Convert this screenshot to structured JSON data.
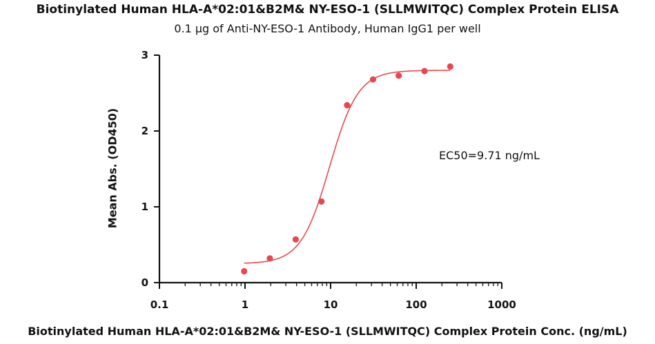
{
  "chart_data": {
    "type": "scatter",
    "title": "Biotinylated Human HLA-A*02:01&B2M& NY-ESO-1 (SLLMWITQC) Complex Protein ELISA",
    "subtitle": "0.1 μg of Anti-NY-ESO-1 Antibody, Human IgG1 per well",
    "xlabel": "Biotinylated Human HLA-A*02:01&B2M& NY-ESO-1 (SLLMWITQC) Complex Protein Conc. (ng/mL)",
    "ylabel": "Mean Abs. (OD450)",
    "x_scale": "log",
    "xlim": [
      0.1,
      1000
    ],
    "ylim": [
      0,
      3
    ],
    "x_ticks": [
      "0.1",
      "1",
      "10",
      "100",
      "1000"
    ],
    "y_ticks": [
      "0",
      "1",
      "2",
      "3"
    ],
    "series": [
      {
        "color": "#e8474f",
        "x": [
          0.977,
          1.95,
          3.91,
          7.81,
          15.6,
          31.3,
          62.5,
          125,
          250
        ],
        "y": [
          0.15,
          0.32,
          0.57,
          1.07,
          2.34,
          2.68,
          2.73,
          2.79,
          2.85
        ]
      }
    ],
    "fit_curve": {
      "model": "4PL",
      "bottom": 0.25,
      "top": 2.8,
      "ec50": 9.71,
      "hill": 2.6,
      "x_range": [
        0.977,
        250
      ]
    },
    "annotation": "EC50=9.71 ng/mL"
  }
}
